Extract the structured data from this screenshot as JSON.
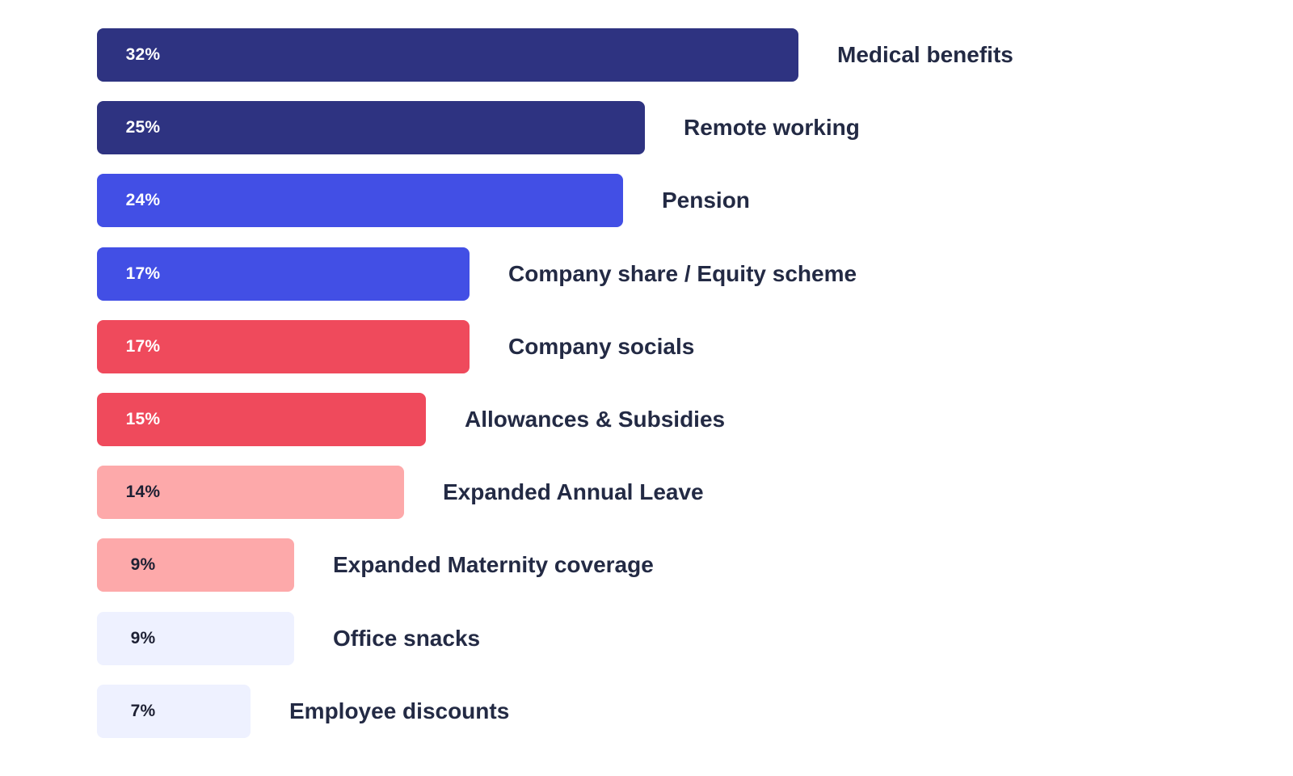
{
  "chart_data": {
    "type": "bar",
    "orientation": "horizontal",
    "unit": "%",
    "grid": false,
    "legend": "none",
    "xlim": [
      0,
      32
    ],
    "categories": [
      "Medical benefits",
      "Remote working",
      "Pension",
      "Company share / Equity scheme",
      "Company socials",
      "Allowances & Subsidies",
      "Expanded Annual Leave",
      "Expanded Maternity coverage",
      "Office snacks",
      "Employee discounts"
    ],
    "values": [
      32,
      25,
      24,
      17,
      17,
      15,
      14,
      9,
      9,
      7
    ],
    "data_labels": [
      "32%",
      "25%",
      "24%",
      "17%",
      "17%",
      "15%",
      "14%",
      "9%",
      "9%",
      "7%"
    ],
    "bar_colors": [
      "#2e3381",
      "#2e3381",
      "#424fe5",
      "#424fe5",
      "#ef4a5c",
      "#ef4a5c",
      "#fda9aa",
      "#fda9aa",
      "#eef1ff",
      "#eef1ff"
    ],
    "value_label_colors": [
      "#ffffff",
      "#ffffff",
      "#ffffff",
      "#ffffff",
      "#ffffff",
      "#ffffff",
      "#1d2033",
      "#1d2033",
      "#1d2033",
      "#1d2033"
    ],
    "category_label_color": "#232a44"
  }
}
